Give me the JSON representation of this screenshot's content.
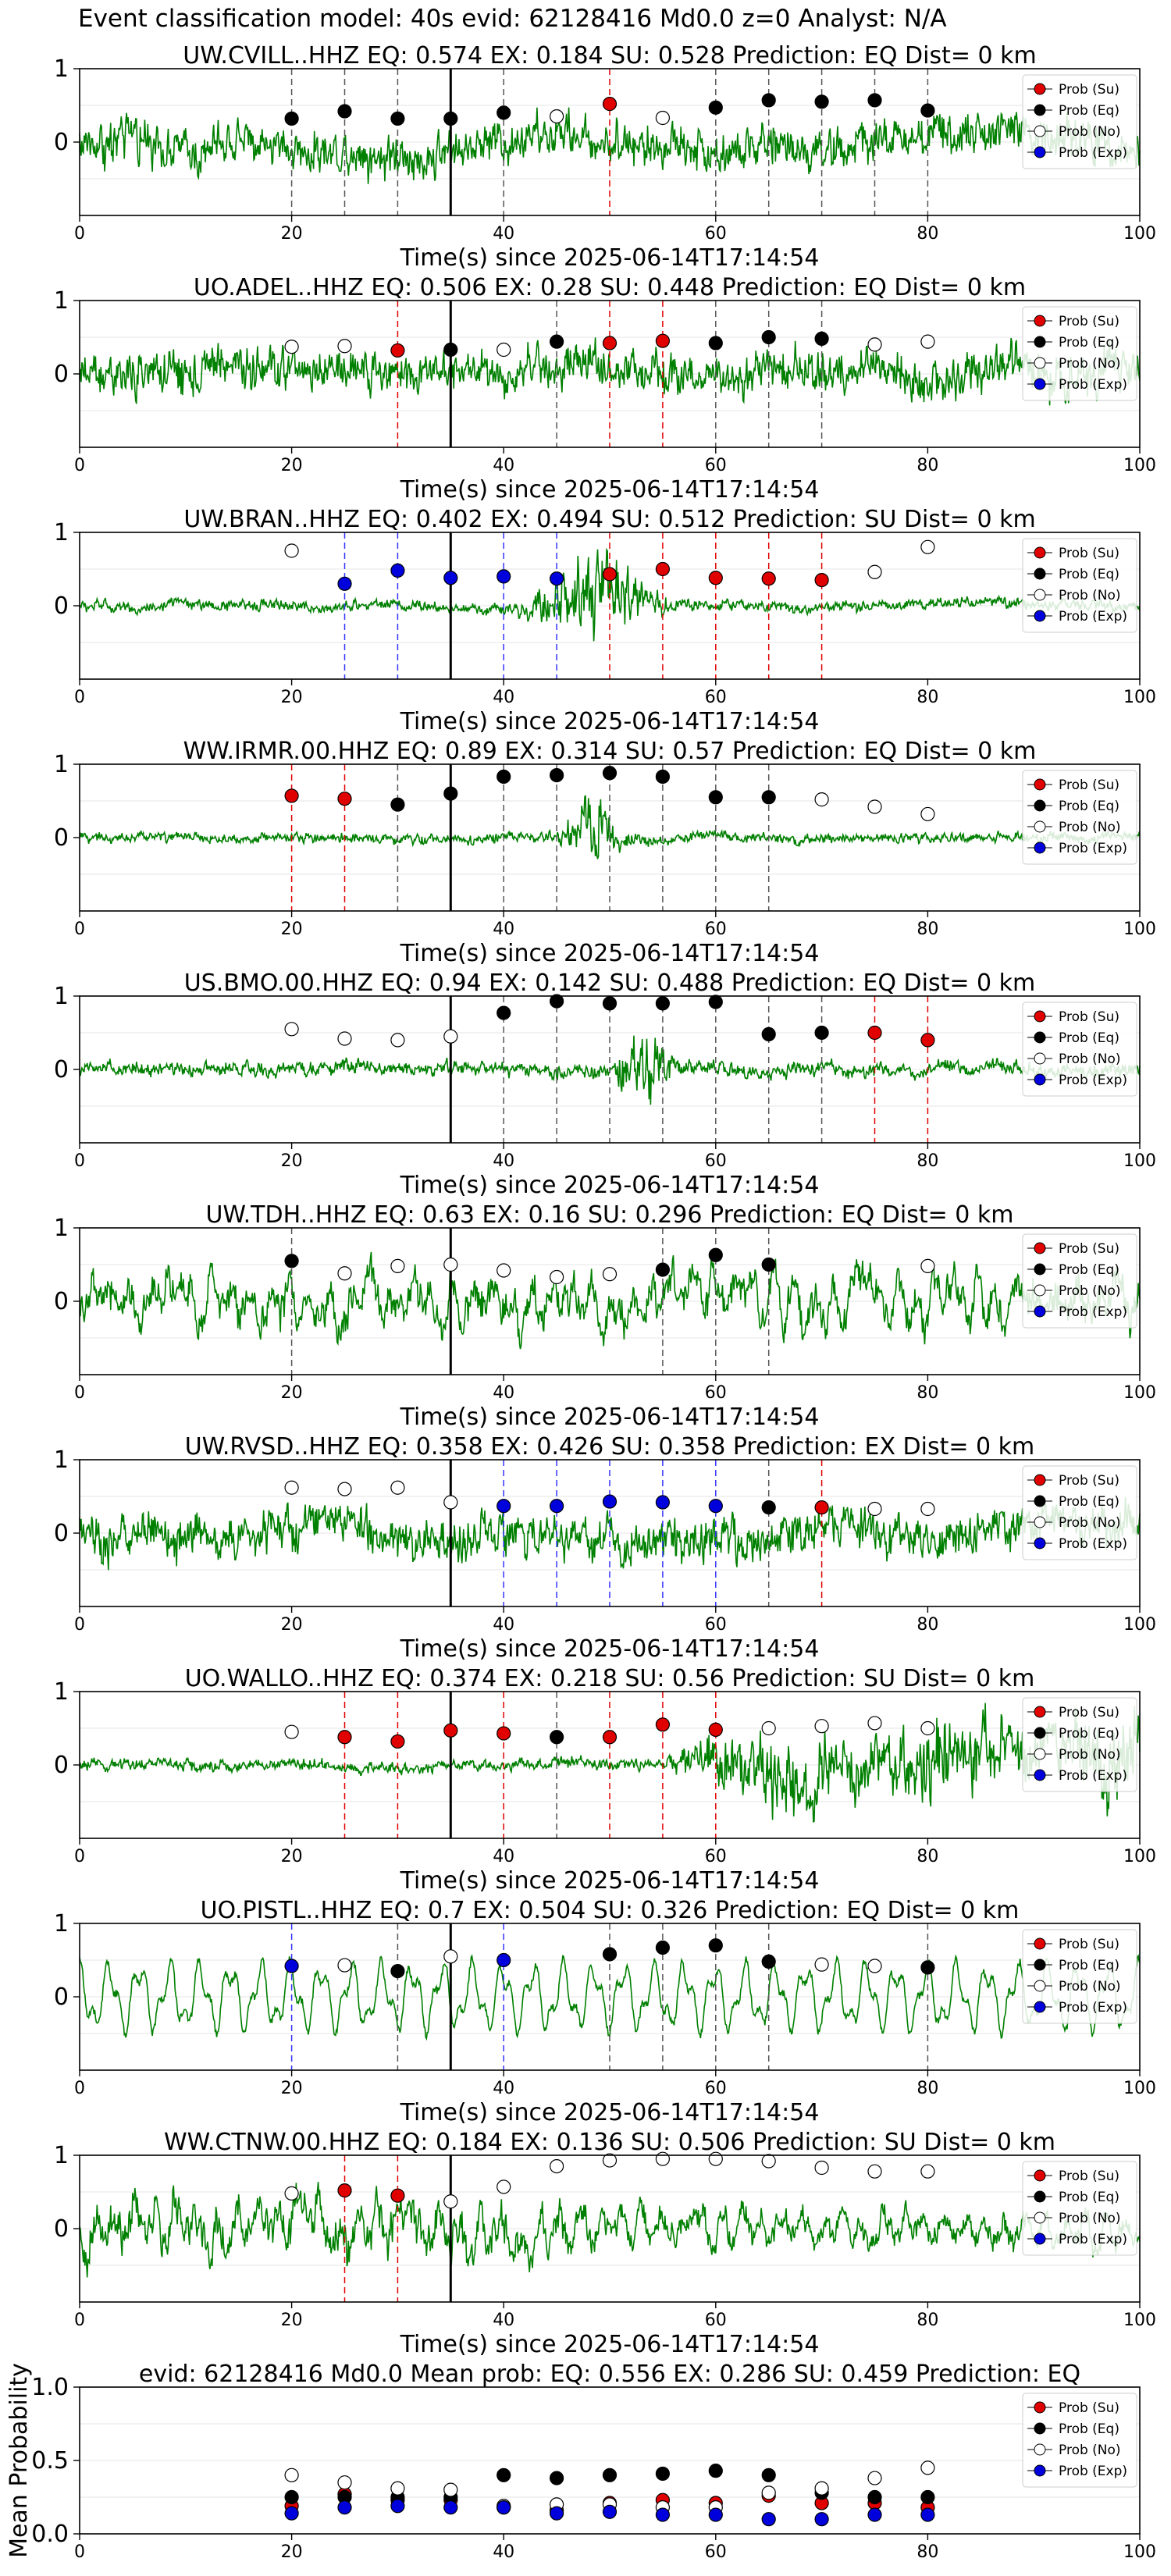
{
  "suptitle": "Event classification model: 40s evid: 62128416 Md0.0 z=0 Analyst: N/A",
  "xlabel": "Time(s) since 2025-06-14T17:14:54",
  "xticks": [
    0,
    20,
    40,
    60,
    80,
    100
  ],
  "yticks": [
    0,
    1
  ],
  "legend_labels": [
    "Prob (Su)",
    "Prob (Eq)",
    "Prob (No)",
    "Prob (Exp)"
  ],
  "colors": {
    "su": "#e00000",
    "eq": "#000000",
    "no": "#ffffff",
    "exp": "#0000dd",
    "waveform": "#008000",
    "origin_line": "#000000"
  },
  "chart_data": [
    {
      "type": "line",
      "title": "UW.CVILL..HHZ   EQ: 0.574  EX: 0.184  SU: 0.528   Prediction: EQ    Dist= 0 km",
      "xlim": [
        0,
        100
      ],
      "ylim": [
        -1,
        1
      ],
      "origin_time": 35,
      "amp": 0.45,
      "env": "uniform",
      "noise": "hf",
      "points": [
        {
          "t": 20,
          "cls": "eq",
          "p": 0.32
        },
        {
          "t": 25,
          "cls": "eq",
          "p": 0.42
        },
        {
          "t": 30,
          "cls": "eq",
          "p": 0.32
        },
        {
          "t": 35,
          "cls": "eq",
          "p": 0.32
        },
        {
          "t": 40,
          "cls": "eq",
          "p": 0.4
        },
        {
          "t": 45,
          "cls": "no",
          "p": 0.35
        },
        {
          "t": 50,
          "cls": "su",
          "p": 0.52
        },
        {
          "t": 55,
          "cls": "no",
          "p": 0.33
        },
        {
          "t": 60,
          "cls": "eq",
          "p": 0.47
        },
        {
          "t": 65,
          "cls": "eq",
          "p": 0.57
        },
        {
          "t": 70,
          "cls": "eq",
          "p": 0.55
        },
        {
          "t": 75,
          "cls": "eq",
          "p": 0.57
        },
        {
          "t": 80,
          "cls": "eq",
          "p": 0.43
        }
      ]
    },
    {
      "type": "line",
      "title": "UO.ADEL..HHZ   EQ: 0.506  EX: 0.28  SU: 0.448   Prediction: EQ    Dist= 0 km",
      "xlim": [
        0,
        100
      ],
      "ylim": [
        -1,
        1
      ],
      "origin_time": 35,
      "amp": 0.45,
      "env": "uniform",
      "noise": "hf",
      "points": [
        {
          "t": 20,
          "cls": "no",
          "p": 0.37
        },
        {
          "t": 25,
          "cls": "no",
          "p": 0.38
        },
        {
          "t": 30,
          "cls": "su",
          "p": 0.32
        },
        {
          "t": 35,
          "cls": "eq",
          "p": 0.33
        },
        {
          "t": 40,
          "cls": "no",
          "p": 0.33
        },
        {
          "t": 45,
          "cls": "eq",
          "p": 0.44
        },
        {
          "t": 50,
          "cls": "su",
          "p": 0.42
        },
        {
          "t": 55,
          "cls": "su",
          "p": 0.45
        },
        {
          "t": 60,
          "cls": "eq",
          "p": 0.42
        },
        {
          "t": 65,
          "cls": "eq",
          "p": 0.5
        },
        {
          "t": 70,
          "cls": "eq",
          "p": 0.48
        },
        {
          "t": 75,
          "cls": "no",
          "p": 0.4
        },
        {
          "t": 80,
          "cls": "no",
          "p": 0.44
        }
      ]
    },
    {
      "type": "line",
      "title": "UW.BRAN..HHZ   EQ: 0.402  EX: 0.494  SU: 0.512   Prediction: SU    Dist= 0 km",
      "xlim": [
        0,
        100
      ],
      "ylim": [
        -1,
        1
      ],
      "origin_time": 35,
      "amp": 0.12,
      "env": "burst",
      "burst": [
        41,
        49,
        56
      ],
      "burst_amp": 0.9,
      "noise": "hf",
      "points": [
        {
          "t": 20,
          "cls": "no",
          "p": 0.75
        },
        {
          "t": 25,
          "cls": "exp",
          "p": 0.3
        },
        {
          "t": 30,
          "cls": "exp",
          "p": 0.48
        },
        {
          "t": 35,
          "cls": "exp",
          "p": 0.38
        },
        {
          "t": 40,
          "cls": "exp",
          "p": 0.4
        },
        {
          "t": 45,
          "cls": "exp",
          "p": 0.37
        },
        {
          "t": 50,
          "cls": "su",
          "p": 0.43
        },
        {
          "t": 55,
          "cls": "su",
          "p": 0.5
        },
        {
          "t": 60,
          "cls": "su",
          "p": 0.38
        },
        {
          "t": 65,
          "cls": "su",
          "p": 0.37
        },
        {
          "t": 70,
          "cls": "su",
          "p": 0.35
        },
        {
          "t": 75,
          "cls": "no",
          "p": 0.46
        },
        {
          "t": 80,
          "cls": "no",
          "p": 0.8
        }
      ]
    },
    {
      "type": "line",
      "title": "WW.IRMR.00.HHZ   EQ: 0.89  EX: 0.314  SU: 0.57   Prediction: EQ    Dist= 0 km",
      "xlim": [
        0,
        100
      ],
      "ylim": [
        -1,
        1
      ],
      "origin_time": 35,
      "amp": 0.1,
      "env": "spike",
      "burst": [
        45,
        49,
        55
      ],
      "burst_amp": 0.85,
      "noise": "hf",
      "points": [
        {
          "t": 20,
          "cls": "su",
          "p": 0.57
        },
        {
          "t": 25,
          "cls": "su",
          "p": 0.53
        },
        {
          "t": 30,
          "cls": "eq",
          "p": 0.45
        },
        {
          "t": 35,
          "cls": "eq",
          "p": 0.6
        },
        {
          "t": 40,
          "cls": "eq",
          "p": 0.83
        },
        {
          "t": 45,
          "cls": "eq",
          "p": 0.85
        },
        {
          "t": 50,
          "cls": "eq",
          "p": 0.88
        },
        {
          "t": 55,
          "cls": "eq",
          "p": 0.83
        },
        {
          "t": 60,
          "cls": "eq",
          "p": 0.55
        },
        {
          "t": 65,
          "cls": "eq",
          "p": 0.55
        },
        {
          "t": 70,
          "cls": "no",
          "p": 0.52
        },
        {
          "t": 75,
          "cls": "no",
          "p": 0.42
        },
        {
          "t": 80,
          "cls": "no",
          "p": 0.32
        }
      ]
    },
    {
      "type": "line",
      "title": "US.BMO.00.HHZ   EQ: 0.94  EX: 0.142  SU: 0.488   Prediction: EQ    Dist= 0 km",
      "xlim": [
        0,
        100
      ],
      "ylim": [
        -1,
        1
      ],
      "origin_time": 35,
      "amp": 0.15,
      "env": "spike",
      "burst": [
        50,
        54,
        60
      ],
      "burst_amp": 0.9,
      "noise": "hf",
      "points": [
        {
          "t": 20,
          "cls": "no",
          "p": 0.55
        },
        {
          "t": 25,
          "cls": "no",
          "p": 0.42
        },
        {
          "t": 30,
          "cls": "no",
          "p": 0.4
        },
        {
          "t": 35,
          "cls": "no",
          "p": 0.45
        },
        {
          "t": 40,
          "cls": "eq",
          "p": 0.77
        },
        {
          "t": 45,
          "cls": "eq",
          "p": 0.93
        },
        {
          "t": 50,
          "cls": "eq",
          "p": 0.9
        },
        {
          "t": 55,
          "cls": "eq",
          "p": 0.9
        },
        {
          "t": 60,
          "cls": "eq",
          "p": 0.92
        },
        {
          "t": 65,
          "cls": "eq",
          "p": 0.48
        },
        {
          "t": 70,
          "cls": "eq",
          "p": 0.5
        },
        {
          "t": 75,
          "cls": "su",
          "p": 0.5
        },
        {
          "t": 80,
          "cls": "su",
          "p": 0.4
        }
      ]
    },
    {
      "type": "line",
      "title": "UW.TDH..HHZ   EQ: 0.63  EX: 0.16  SU: 0.296   Prediction: EQ    Dist= 0 km",
      "xlim": [
        0,
        100
      ],
      "ylim": [
        -1,
        1
      ],
      "origin_time": 35,
      "amp": 0.55,
      "env": "uniform",
      "noise": "mf",
      "points": [
        {
          "t": 20,
          "cls": "eq",
          "p": 0.55
        },
        {
          "t": 25,
          "cls": "no",
          "p": 0.38
        },
        {
          "t": 30,
          "cls": "no",
          "p": 0.48
        },
        {
          "t": 35,
          "cls": "no",
          "p": 0.5
        },
        {
          "t": 40,
          "cls": "no",
          "p": 0.42
        },
        {
          "t": 45,
          "cls": "no",
          "p": 0.33
        },
        {
          "t": 50,
          "cls": "no",
          "p": 0.37
        },
        {
          "t": 55,
          "cls": "eq",
          "p": 0.43
        },
        {
          "t": 60,
          "cls": "eq",
          "p": 0.63
        },
        {
          "t": 65,
          "cls": "eq",
          "p": 0.5
        },
        {
          "t": 80,
          "cls": "no",
          "p": 0.48
        }
      ]
    },
    {
      "type": "line",
      "title": "UW.RVSD..HHZ   EQ: 0.358  EX: 0.426  SU: 0.358   Prediction: EX    Dist= 0 km",
      "xlim": [
        0,
        100
      ],
      "ylim": [
        -1,
        1
      ],
      "origin_time": 35,
      "amp": 0.45,
      "env": "uniform",
      "noise": "hf",
      "points": [
        {
          "t": 20,
          "cls": "no",
          "p": 0.62
        },
        {
          "t": 25,
          "cls": "no",
          "p": 0.6
        },
        {
          "t": 30,
          "cls": "no",
          "p": 0.62
        },
        {
          "t": 35,
          "cls": "no",
          "p": 0.42
        },
        {
          "t": 40,
          "cls": "exp",
          "p": 0.37
        },
        {
          "t": 45,
          "cls": "exp",
          "p": 0.37
        },
        {
          "t": 50,
          "cls": "exp",
          "p": 0.43
        },
        {
          "t": 55,
          "cls": "exp",
          "p": 0.42
        },
        {
          "t": 60,
          "cls": "exp",
          "p": 0.37
        },
        {
          "t": 65,
          "cls": "eq",
          "p": 0.35
        },
        {
          "t": 70,
          "cls": "su",
          "p": 0.35
        },
        {
          "t": 75,
          "cls": "no",
          "p": 0.33
        },
        {
          "t": 80,
          "cls": "no",
          "p": 0.33
        }
      ]
    },
    {
      "type": "line",
      "title": "UO.WALLO..HHZ   EQ: 0.374  EX: 0.218  SU: 0.56   Prediction: SU    Dist= 0 km",
      "xlim": [
        0,
        100
      ],
      "ylim": [
        -1,
        1
      ],
      "origin_time": 35,
      "amp": 0.12,
      "env": "ramp",
      "burst": [
        55,
        60,
        100
      ],
      "burst_amp": 0.85,
      "noise": "hf",
      "points": [
        {
          "t": 20,
          "cls": "no",
          "p": 0.45
        },
        {
          "t": 25,
          "cls": "su",
          "p": 0.38
        },
        {
          "t": 30,
          "cls": "su",
          "p": 0.32
        },
        {
          "t": 35,
          "cls": "su",
          "p": 0.47
        },
        {
          "t": 40,
          "cls": "su",
          "p": 0.43
        },
        {
          "t": 45,
          "cls": "eq",
          "p": 0.38
        },
        {
          "t": 50,
          "cls": "su",
          "p": 0.38
        },
        {
          "t": 55,
          "cls": "su",
          "p": 0.55
        },
        {
          "t": 60,
          "cls": "su",
          "p": 0.48
        },
        {
          "t": 65,
          "cls": "no",
          "p": 0.5
        },
        {
          "t": 70,
          "cls": "no",
          "p": 0.53
        },
        {
          "t": 75,
          "cls": "no",
          "p": 0.57
        },
        {
          "t": 80,
          "cls": "no",
          "p": 0.5
        }
      ]
    },
    {
      "type": "line",
      "title": "UO.PISTL..HHZ   EQ: 0.7  EX: 0.504  SU: 0.326   Prediction: EQ    Dist= 0 km",
      "xlim": [
        0,
        100
      ],
      "ylim": [
        -1,
        1
      ],
      "origin_time": 35,
      "amp": 0.5,
      "env": "uniform",
      "noise": "lf",
      "points": [
        {
          "t": 20,
          "cls": "exp",
          "p": 0.42
        },
        {
          "t": 25,
          "cls": "no",
          "p": 0.43
        },
        {
          "t": 30,
          "cls": "eq",
          "p": 0.35
        },
        {
          "t": 35,
          "cls": "no",
          "p": 0.55
        },
        {
          "t": 40,
          "cls": "exp",
          "p": 0.5
        },
        {
          "t": 50,
          "cls": "eq",
          "p": 0.58
        },
        {
          "t": 55,
          "cls": "eq",
          "p": 0.67
        },
        {
          "t": 60,
          "cls": "eq",
          "p": 0.7
        },
        {
          "t": 65,
          "cls": "eq",
          "p": 0.48
        },
        {
          "t": 70,
          "cls": "no",
          "p": 0.44
        },
        {
          "t": 75,
          "cls": "no",
          "p": 0.42
        },
        {
          "t": 80,
          "cls": "eq",
          "p": 0.4
        }
      ]
    },
    {
      "type": "line",
      "title": "WW.CTNW.00.HHZ   EQ: 0.184  EX: 0.136  SU: 0.506   Prediction: SU    Dist= 0 km",
      "xlim": [
        0,
        100
      ],
      "ylim": [
        -1,
        1
      ],
      "origin_time": 35,
      "amp": 0.6,
      "env": "decay",
      "noise": "mf",
      "points": [
        {
          "t": 20,
          "cls": "no",
          "p": 0.48
        },
        {
          "t": 25,
          "cls": "su",
          "p": 0.52
        },
        {
          "t": 30,
          "cls": "su",
          "p": 0.45
        },
        {
          "t": 35,
          "cls": "no",
          "p": 0.37
        },
        {
          "t": 40,
          "cls": "no",
          "p": 0.57
        },
        {
          "t": 45,
          "cls": "no",
          "p": 0.85
        },
        {
          "t": 50,
          "cls": "no",
          "p": 0.93
        },
        {
          "t": 55,
          "cls": "no",
          "p": 0.95
        },
        {
          "t": 60,
          "cls": "no",
          "p": 0.95
        },
        {
          "t": 65,
          "cls": "no",
          "p": 0.92
        },
        {
          "t": 70,
          "cls": "no",
          "p": 0.83
        },
        {
          "t": 75,
          "cls": "no",
          "p": 0.78
        },
        {
          "t": 80,
          "cls": "no",
          "p": 0.78
        }
      ]
    },
    {
      "type": "scatter",
      "title": "evid: 62128416  Md0.0   Mean prob:   EQ: 0.556  EX: 0.286  SU: 0.459   Prediction: EQ",
      "ylabel": "Mean Probability",
      "xlim": [
        0,
        100
      ],
      "ylim": [
        0,
        1
      ],
      "yticks": [
        0.0,
        0.5,
        1.0
      ],
      "ytick_labels": [
        "0.0",
        "0.5",
        "1.0"
      ],
      "x": [
        20,
        25,
        30,
        35,
        40,
        45,
        50,
        55,
        60,
        65,
        70,
        75,
        80
      ],
      "series": [
        {
          "name": "Prob (Su)",
          "cls": "su",
          "values": [
            0.19,
            0.27,
            0.23,
            0.23,
            0.18,
            0.16,
            0.21,
            0.23,
            0.21,
            0.26,
            0.21,
            0.21,
            0.18
          ]
        },
        {
          "name": "Prob (Eq)",
          "cls": "eq",
          "values": [
            0.25,
            0.25,
            0.25,
            0.25,
            0.4,
            0.38,
            0.4,
            0.41,
            0.43,
            0.4,
            0.28,
            0.25,
            0.25
          ]
        },
        {
          "name": "Prob (No)",
          "cls": "no",
          "values": [
            0.4,
            0.35,
            0.31,
            0.3,
            0.19,
            0.2,
            0.2,
            0.18,
            0.18,
            0.28,
            0.31,
            0.38,
            0.45
          ]
        },
        {
          "name": "Prob (Exp)",
          "cls": "exp",
          "values": [
            0.14,
            0.18,
            0.19,
            0.18,
            0.18,
            0.14,
            0.15,
            0.13,
            0.13,
            0.1,
            0.1,
            0.13,
            0.13
          ]
        }
      ]
    }
  ]
}
